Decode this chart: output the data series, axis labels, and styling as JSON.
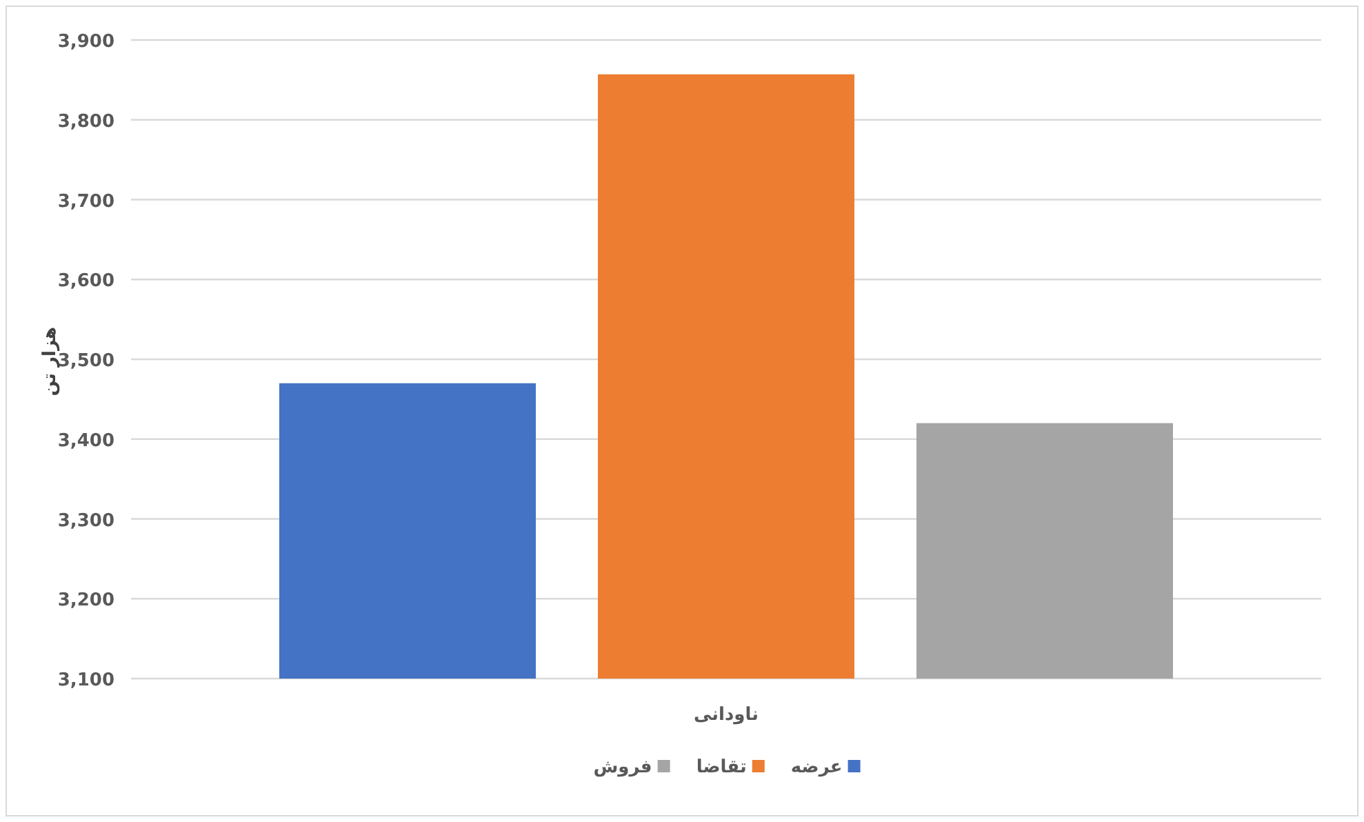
{
  "chart_data": {
    "type": "bar",
    "ylabel": "هزار تن",
    "categories": [
      "ناودانی"
    ],
    "series": [
      {
        "name": "عرضه",
        "color": "#4472c4",
        "values": [
          3470
        ]
      },
      {
        "name": "تقاضا",
        "color": "#ed7d31",
        "values": [
          3857
        ]
      },
      {
        "name": "فروش",
        "color": "#a5a5a5",
        "values": [
          3420
        ]
      }
    ],
    "ylim": [
      3100,
      3900
    ],
    "yticks": [
      {
        "value": 3100,
        "label": "3,100"
      },
      {
        "value": 3200,
        "label": "3,200"
      },
      {
        "value": 3300,
        "label": "3,300"
      },
      {
        "value": 3400,
        "label": "3,400"
      },
      {
        "value": 3500,
        "label": "3,500"
      },
      {
        "value": 3600,
        "label": "3,600"
      },
      {
        "value": 3700,
        "label": "3,700"
      },
      {
        "value": 3800,
        "label": "3,800"
      },
      {
        "value": 3900,
        "label": "3,900"
      }
    ],
    "grid": "y",
    "legend": "bottom"
  }
}
